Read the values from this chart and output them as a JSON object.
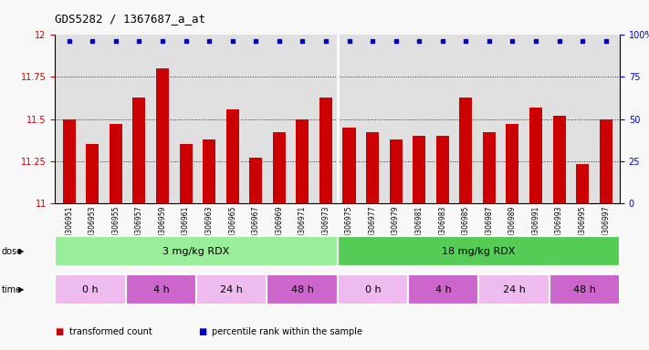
{
  "title": "GDS5282 / 1367687_a_at",
  "samples": [
    "GSM306951",
    "GSM306953",
    "GSM306955",
    "GSM306957",
    "GSM306959",
    "GSM306961",
    "GSM306963",
    "GSM306965",
    "GSM306967",
    "GSM306969",
    "GSM306971",
    "GSM306973",
    "GSM306975",
    "GSM306977",
    "GSM306979",
    "GSM306981",
    "GSM306983",
    "GSM306985",
    "GSM306987",
    "GSM306989",
    "GSM306991",
    "GSM306993",
    "GSM306995",
    "GSM306997"
  ],
  "values": [
    11.5,
    11.35,
    11.47,
    11.63,
    11.8,
    11.35,
    11.38,
    11.56,
    11.27,
    11.42,
    11.5,
    11.63,
    11.45,
    11.42,
    11.38,
    11.4,
    11.4,
    11.63,
    11.42,
    11.47,
    11.57,
    11.52,
    11.23,
    11.5
  ],
  "bar_color": "#cc0000",
  "dot_color": "#0000cc",
  "ylim": [
    11.0,
    12.0
  ],
  "yticks_left": [
    11.0,
    11.25,
    11.5,
    11.75,
    12.0
  ],
  "ytick_left_labels": [
    "11",
    "11.25",
    "11.5",
    "11.75",
    "12"
  ],
  "yticks_right": [
    0,
    25,
    50,
    75,
    100
  ],
  "ytick_right_labels": [
    "0",
    "25",
    "50",
    "75",
    "100%"
  ],
  "plot_bg_color": "#e0e0e0",
  "fig_bg_color": "#f8f8f8",
  "dose_groups": [
    {
      "label": "3 mg/kg RDX",
      "start": 0,
      "end": 12,
      "color": "#99ee99"
    },
    {
      "label": "18 mg/kg RDX",
      "start": 12,
      "end": 24,
      "color": "#55cc55"
    }
  ],
  "time_groups": [
    {
      "label": "0 h",
      "start": 0,
      "end": 3,
      "color": "#eebbee"
    },
    {
      "label": "4 h",
      "start": 3,
      "end": 6,
      "color": "#cc66cc"
    },
    {
      "label": "24 h",
      "start": 6,
      "end": 9,
      "color": "#eebbee"
    },
    {
      "label": "48 h",
      "start": 9,
      "end": 12,
      "color": "#cc66cc"
    },
    {
      "label": "0 h",
      "start": 12,
      "end": 15,
      "color": "#eebbee"
    },
    {
      "label": "4 h",
      "start": 15,
      "end": 18,
      "color": "#cc66cc"
    },
    {
      "label": "24 h",
      "start": 18,
      "end": 21,
      "color": "#eebbee"
    },
    {
      "label": "48 h",
      "start": 21,
      "end": 24,
      "color": "#cc66cc"
    }
  ],
  "legend_items": [
    {
      "color": "#cc0000",
      "label": "transformed count"
    },
    {
      "color": "#0000cc",
      "label": "percentile rank within the sample"
    }
  ]
}
